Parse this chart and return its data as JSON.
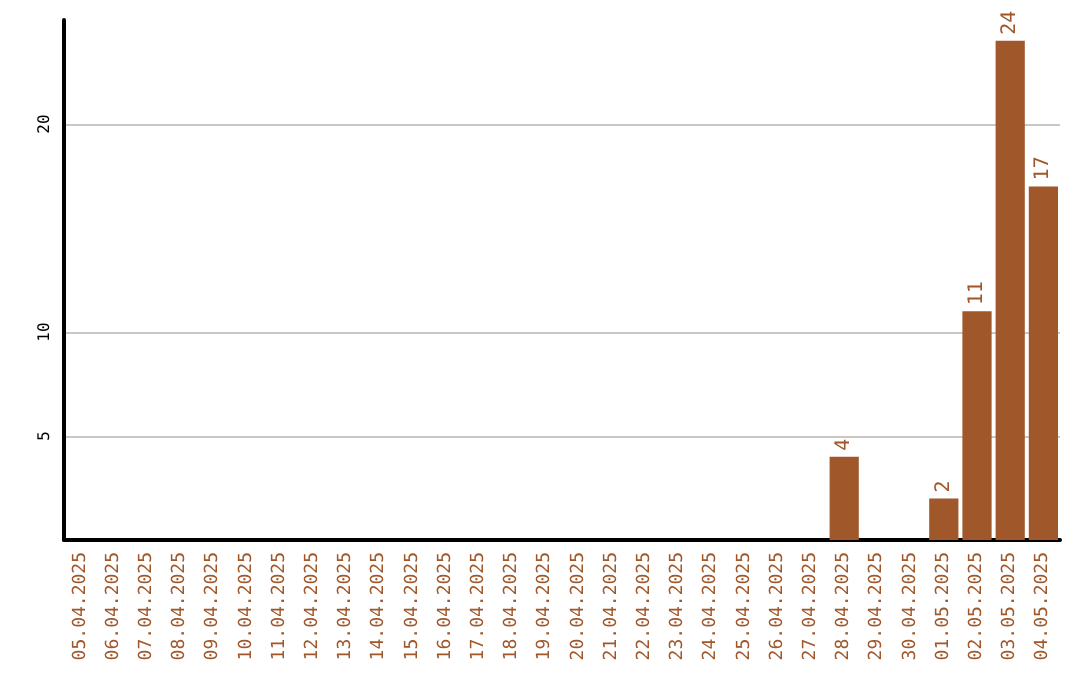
{
  "chart_data": {
    "type": "bar",
    "categories": [
      "05.04.2025",
      "06.04.2025",
      "07.04.2025",
      "08.04.2025",
      "09.04.2025",
      "10.04.2025",
      "11.04.2025",
      "12.04.2025",
      "13.04.2025",
      "14.04.2025",
      "15.04.2025",
      "16.04.2025",
      "17.04.2025",
      "18.04.2025",
      "19.04.2025",
      "20.04.2025",
      "21.04.2025",
      "22.04.2025",
      "23.04.2025",
      "24.04.2025",
      "25.04.2025",
      "26.04.2025",
      "27.04.2025",
      "28.04.2025",
      "29.04.2025",
      "30.04.2025",
      "01.05.2025",
      "02.05.2025",
      "03.05.2025",
      "04.05.2025"
    ],
    "values": [
      0,
      0,
      0,
      0,
      0,
      0,
      0,
      0,
      0,
      0,
      0,
      0,
      0,
      0,
      0,
      0,
      0,
      0,
      0,
      0,
      0,
      0,
      0,
      4,
      0,
      0,
      2,
      11,
      24,
      17
    ],
    "value_labels": [
      null,
      null,
      null,
      null,
      null,
      null,
      null,
      null,
      null,
      null,
      null,
      null,
      null,
      null,
      null,
      null,
      null,
      null,
      null,
      null,
      null,
      null,
      null,
      "4",
      null,
      null,
      "2",
      "11",
      "24",
      "17"
    ],
    "color": "#a0572a",
    "ylim": [
      0,
      25
    ],
    "yticks": [
      5,
      10,
      20
    ],
    "grid": "y"
  }
}
